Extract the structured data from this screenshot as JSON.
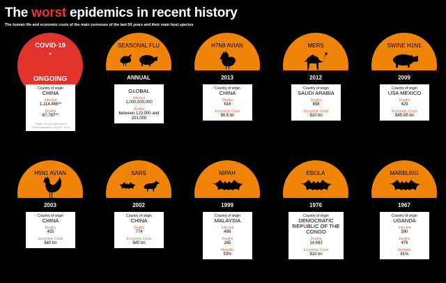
{
  "title": {
    "before": "The ",
    "accent": "worst",
    "after": " epidemics in recent history"
  },
  "subtitle": "The human life and economic costs of the main zoonoses of the last 50 years and their main host species",
  "colors": {
    "orange": "#ef8409",
    "red": "#e0342d",
    "stat_label": "#e2622e"
  },
  "labels": {
    "country_origin": "Country of origin",
    "infected": "Infected",
    "deaths": "Deaths",
    "economic_costs": "Economic Costs",
    "mortality": "Mortality"
  },
  "epidemics": [
    {
      "name": "COVID-19",
      "star": "*",
      "year": "ONGOING",
      "icon": "none",
      "country": "CHINA",
      "stats": [
        {
          "label": "Infected",
          "value": "1,214,466**"
        },
        {
          "label": "Deaths",
          "value": "67,767**"
        }
      ],
      "notes": [
        "*Origin not yet determined",
        "**Data updated to April 6, 2020"
      ]
    },
    {
      "name": "SEASONAL FLU",
      "year": "ANNUAL",
      "icon": "bird-and-pig-icon",
      "country": "GLOBAL",
      "stats": [
        {
          "label": "Infected",
          "value": "1,000,000,000"
        },
        {
          "label": "Deaths",
          "value": "between 123,000 and 203,000"
        }
      ]
    },
    {
      "name": "H7N9 AVIAN",
      "year": "2013",
      "icon": "hen-icon",
      "country": "CHINA",
      "stats": [
        {
          "label": "Deaths",
          "value": "616"
        },
        {
          "label": "Economic Costs",
          "value": "$6.5 bn"
        }
      ]
    },
    {
      "name": "MERS",
      "year": "2012",
      "icon": "camel-icon",
      "country": "SAUDI ARABIA",
      "stats": [
        {
          "label": "Deaths",
          "value": "858"
        },
        {
          "label": "Economic Costs",
          "value": "$10 bn"
        }
      ]
    },
    {
      "name": "SWINE H1N1",
      "year": "2009",
      "icon": "pig-icon",
      "country": "USA MEXICO",
      "stats": [
        {
          "label": "Deaths",
          "value": "429"
        },
        {
          "label": "Economic Costs",
          "value": "$45-55 bn"
        }
      ]
    },
    {
      "name": "H5N1 AVIAN",
      "year": "2003",
      "icon": "rooster-icon",
      "country": "CHINA",
      "stats": [
        {
          "label": "Deaths",
          "value": "455"
        },
        {
          "label": "Economic Costs",
          "value": "$40 bn"
        }
      ]
    },
    {
      "name": "SARS",
      "year": "2002",
      "icon": "bat-and-civet-icon",
      "country": "CHINA",
      "stats": [
        {
          "label": "Deaths",
          "value": "774"
        },
        {
          "label": "Economic Costs",
          "value": "$40 bn"
        }
      ]
    },
    {
      "name": "NIPAH",
      "year": "1999",
      "icon": "bat-icon",
      "country": "MALAYSIA",
      "stats": [
        {
          "label": "Infected",
          "value": "496"
        },
        {
          "label": "Deaths",
          "value": "265"
        },
        {
          "label": "Mortality",
          "value": "53%"
        }
      ]
    },
    {
      "name": "EBOLA",
      "year": "1976",
      "icon": "bat-icon",
      "country": "DEMOCRATIC REPUBLIC OF THE CONGO",
      "stats": [
        {
          "label": "Deaths",
          "value": "14,693"
        },
        {
          "label": "Economic Costs",
          "value": "$10 bn"
        }
      ]
    },
    {
      "name": "MARBURG",
      "year": "1967",
      "icon": "bat-icon",
      "country": "UGANDA",
      "stats": [
        {
          "label": "Infected",
          "value": "590"
        },
        {
          "label": "Deaths",
          "value": "478"
        },
        {
          "label": "Mortality",
          "value": "81%"
        }
      ]
    }
  ]
}
